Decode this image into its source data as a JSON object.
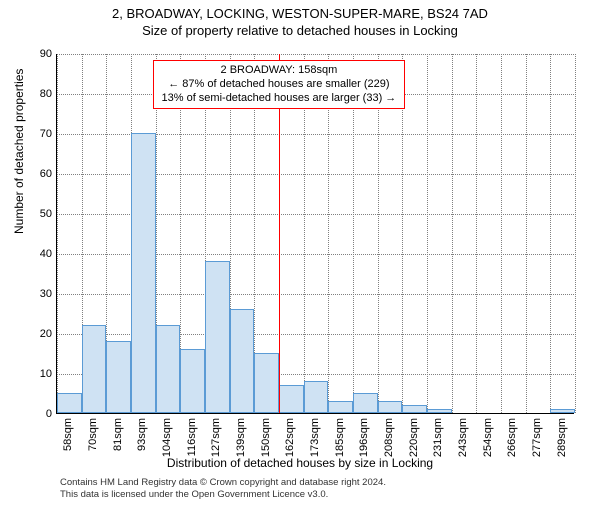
{
  "title_main": "2, BROADWAY, LOCKING, WESTON-SUPER-MARE, BS24 7AD",
  "title_sub": "Size of property relative to detached houses in Locking",
  "ylabel": "Number of detached properties",
  "xlabel": "Distribution of detached houses by size in Locking",
  "chart": {
    "type": "histogram",
    "ylim": [
      0,
      90
    ],
    "ytick_step": 10,
    "bar_color": "#cfe2f3",
    "bar_border": "#5b9bd5",
    "grid_color": "#808080",
    "background_color": "#ffffff",
    "bar_width_ratio": 1.0,
    "xtick_labels": [
      "58sqm",
      "70sqm",
      "81sqm",
      "93sqm",
      "104sqm",
      "116sqm",
      "127sqm",
      "139sqm",
      "150sqm",
      "162sqm",
      "173sqm",
      "185sqm",
      "196sqm",
      "208sqm",
      "220sqm",
      "231sqm",
      "243sqm",
      "254sqm",
      "266sqm",
      "277sqm",
      "289sqm"
    ],
    "values": [
      5,
      22,
      18,
      70,
      22,
      16,
      38,
      26,
      15,
      7,
      8,
      3,
      5,
      3,
      2,
      1,
      0,
      0,
      0,
      0,
      1
    ],
    "marker": {
      "bin_index_after_bar": 9,
      "line_color": "#ff0000",
      "box_border": "#ff0000",
      "lines": [
        "2 BROADWAY: 158sqm",
        "← 87% of detached houses are smaller (229)",
        "13% of semi-detached houses are larger (33) →"
      ]
    }
  },
  "note_line1": "Contains HM Land Registry data © Crown copyright and database right 2024.",
  "note_line2": "This data is licensed under the Open Government Licence v3.0."
}
